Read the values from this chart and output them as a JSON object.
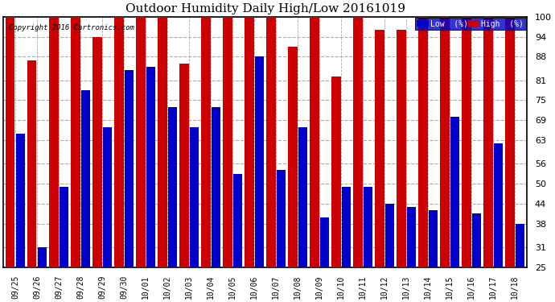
{
  "title": "Outdoor Humidity Daily High/Low 20161019",
  "copyright": "Copyright 2016 Cartronics.com",
  "background_color": "#ffffff",
  "plot_bg_color": "#ffffff",
  "bar_color_low": "#0000cc",
  "bar_color_high": "#cc0000",
  "legend_low_label": "Low  (%)",
  "legend_high_label": "High  (%)",
  "ylim": [
    25,
    100
  ],
  "yticks": [
    25,
    31,
    38,
    44,
    50,
    56,
    63,
    69,
    75,
    81,
    88,
    94,
    100
  ],
  "dates": [
    "09/25",
    "09/26",
    "09/27",
    "09/28",
    "09/29",
    "09/30",
    "10/01",
    "10/02",
    "10/03",
    "10/04",
    "10/05",
    "10/06",
    "10/07",
    "10/08",
    "10/09",
    "10/10",
    "10/11",
    "10/12",
    "10/13",
    "10/14",
    "10/15",
    "10/16",
    "10/17",
    "10/18"
  ],
  "low": [
    65,
    31,
    49,
    78,
    67,
    84,
    85,
    73,
    67,
    73,
    53,
    88,
    54,
    67,
    40,
    49,
    49,
    44,
    43,
    42,
    70,
    41,
    62,
    38
  ],
  "high": [
    100,
    87,
    100,
    100,
    94,
    100,
    100,
    100,
    86,
    100,
    100,
    100,
    100,
    91,
    100,
    82,
    100,
    96,
    96,
    100,
    100,
    100,
    100,
    100
  ],
  "bar_width": 0.42,
  "bar_gap": 0.04,
  "figsize": [
    6.9,
    3.75
  ],
  "dpi": 100,
  "title_fontsize": 11,
  "tick_fontsize": 7,
  "ytick_fontsize": 8,
  "border_color": "#000000"
}
